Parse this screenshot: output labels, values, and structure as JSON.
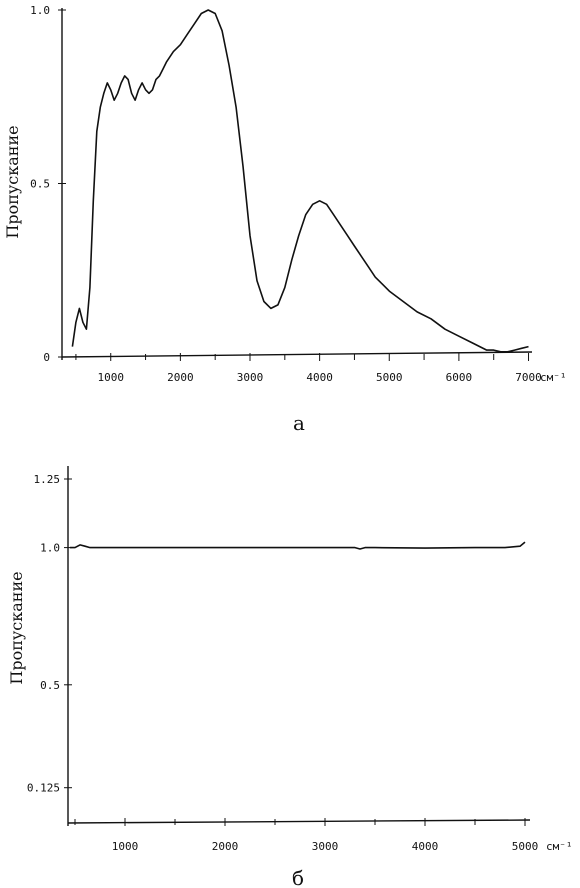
{
  "chart_data": [
    {
      "type": "line",
      "panel_label": "а",
      "title": "",
      "xlabel": "",
      "x_unit": "см⁻¹",
      "ylabel": "Пропускание",
      "xlim": [
        300,
        7050
      ],
      "ylim": [
        0,
        1.0
      ],
      "x_ticks": [
        "1000",
        "2000",
        "3000",
        "4000",
        "5000",
        "6000",
        "7000"
      ],
      "x_tick_values": [
        1000,
        2000,
        3000,
        4000,
        5000,
        6000,
        7000
      ],
      "y_ticks": [
        "0",
        "0.5",
        "1.0"
      ],
      "y_tick_values": [
        0,
        0.5,
        1.0
      ],
      "grid": false,
      "series": [
        {
          "x": [
            450,
            500,
            550,
            600,
            650,
            700,
            750,
            800,
            850,
            900,
            950,
            1000,
            1050,
            1100,
            1150,
            1200,
            1250,
            1300,
            1350,
            1400,
            1450,
            1500,
            1550,
            1600,
            1650,
            1700,
            1750,
            1800,
            1900,
            2000,
            2100,
            2200,
            2300,
            2400,
            2500,
            2600,
            2700,
            2800,
            2900,
            3000,
            3100,
            3200,
            3300,
            3400,
            3500,
            3600,
            3700,
            3800,
            3900,
            4000,
            4100,
            4200,
            4300,
            4400,
            4500,
            4600,
            4700,
            4800,
            4900,
            5000,
            5200,
            5400,
            5600,
            5800,
            6000,
            6200,
            6400,
            6500,
            6600,
            6700,
            6800,
            6900,
            7000
          ],
          "y": [
            0.03,
            0.1,
            0.14,
            0.1,
            0.08,
            0.2,
            0.45,
            0.65,
            0.72,
            0.76,
            0.79,
            0.77,
            0.74,
            0.76,
            0.79,
            0.81,
            0.8,
            0.76,
            0.74,
            0.77,
            0.79,
            0.77,
            0.76,
            0.77,
            0.8,
            0.81,
            0.83,
            0.85,
            0.88,
            0.9,
            0.93,
            0.96,
            0.99,
            1.0,
            0.99,
            0.94,
            0.84,
            0.72,
            0.55,
            0.35,
            0.22,
            0.16,
            0.14,
            0.15,
            0.2,
            0.28,
            0.35,
            0.41,
            0.44,
            0.45,
            0.44,
            0.41,
            0.38,
            0.35,
            0.32,
            0.29,
            0.26,
            0.23,
            0.21,
            0.19,
            0.16,
            0.13,
            0.11,
            0.08,
            0.06,
            0.04,
            0.02,
            0.02,
            0.015,
            0.015,
            0.02,
            0.025,
            0.03
          ]
        }
      ]
    },
    {
      "type": "line",
      "panel_label": "б",
      "title": "",
      "xlabel": "",
      "x_unit": "см⁻¹",
      "ylabel": "Пропускание",
      "xlim": [
        430,
        5050
      ],
      "ylim": [
        0,
        1.25
      ],
      "x_ticks": [
        "1000",
        "2000",
        "3000",
        "4000",
        "5000"
      ],
      "x_tick_values": [
        1000,
        2000,
        3000,
        4000,
        5000
      ],
      "y_ticks": [
        "0.125",
        "0.5",
        "1.0",
        "1.25"
      ],
      "y_tick_values": [
        0.125,
        0.5,
        1.0,
        1.25
      ],
      "grid": false,
      "series": [
        {
          "x": [
            450,
            500,
            550,
            600,
            650,
            700,
            800,
            1000,
            1200,
            1500,
            2000,
            2500,
            3000,
            3300,
            3350,
            3400,
            3500,
            4000,
            4500,
            4800,
            4950,
            5000
          ],
          "y": [
            1.0,
            1.0,
            1.01,
            1.005,
            1.0,
            1.0,
            1.0,
            1.0,
            1.0,
            1.0,
            1.0,
            1.0,
            1.0,
            1.0,
            0.995,
            1.0,
            1.0,
            0.998,
            1.0,
            1.0,
            1.005,
            1.02
          ]
        }
      ]
    }
  ]
}
